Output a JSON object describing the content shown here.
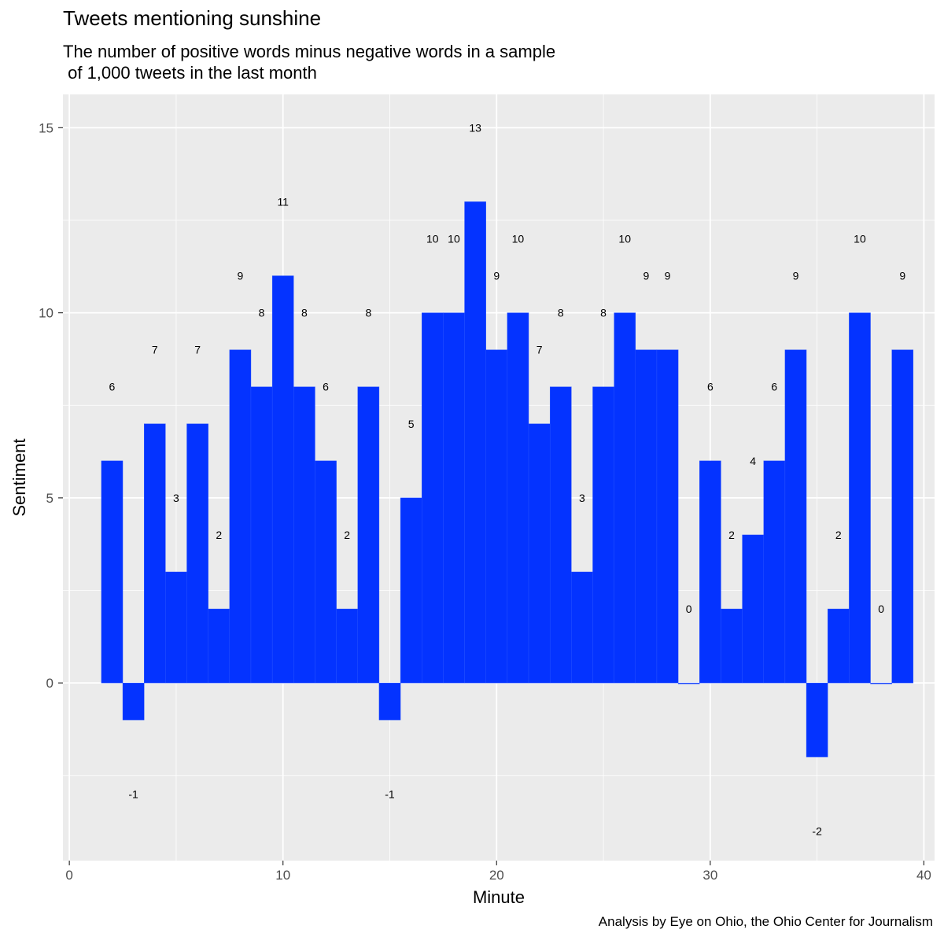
{
  "chart_data": {
    "type": "bar",
    "title": "Tweets mentioning sunshine",
    "subtitle": "The number of positive words minus negative words in a sample\n of 1,000 tweets in the last month",
    "caption": "Analysis by Eye on Ohio, the Ohio Center for Journalism",
    "xlabel": "Minute",
    "ylabel": "Sentiment",
    "xlim": [
      -0.3,
      40.5
    ],
    "ylim": [
      -4.8,
      15.9
    ],
    "x_ticks": [
      0,
      10,
      20,
      30,
      40
    ],
    "y_ticks": [
      0,
      5,
      10,
      15
    ],
    "grid": true,
    "bar_color": "#0433FF",
    "panel_color": "#EBEBEB",
    "label_offset": 2,
    "x": [
      2,
      3,
      4,
      5,
      6,
      7,
      8,
      9,
      10,
      11,
      12,
      13,
      14,
      15,
      16,
      17,
      18,
      19,
      20,
      21,
      22,
      23,
      24,
      25,
      26,
      27,
      28,
      29,
      30,
      31,
      32,
      33,
      34,
      35,
      36,
      37,
      38,
      39
    ],
    "values": [
      6,
      -1,
      7,
      3,
      7,
      2,
      9,
      8,
      11,
      8,
      6,
      2,
      8,
      -1,
      5,
      10,
      10,
      13,
      9,
      10,
      7,
      8,
      3,
      8,
      10,
      9,
      9,
      0,
      6,
      2,
      4,
      6,
      9,
      -2,
      2,
      10,
      0,
      9
    ]
  }
}
